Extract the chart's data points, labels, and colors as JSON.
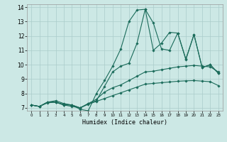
{
  "title": "",
  "xlabel": "Humidex (Indice chaleur)",
  "bg_color": "#cce8e5",
  "grid_color": "#aaccca",
  "line_color": "#1a6b5a",
  "xlim": [
    -0.5,
    23.5
  ],
  "ylim": [
    6.8,
    14.2
  ],
  "xticks": [
    0,
    1,
    2,
    3,
    4,
    5,
    6,
    7,
    8,
    9,
    10,
    11,
    12,
    13,
    14,
    15,
    16,
    17,
    18,
    19,
    20,
    21,
    22,
    23
  ],
  "yticks": [
    7,
    8,
    9,
    10,
    11,
    12,
    13,
    14
  ],
  "series": [
    {
      "x": [
        0,
        1,
        2,
        3,
        4,
        5,
        6,
        7,
        8,
        9,
        10,
        11,
        12,
        13,
        14,
        15,
        16,
        17,
        18,
        19,
        20,
        21,
        22,
        23
      ],
      "y": [
        7.2,
        7.1,
        7.4,
        7.4,
        7.2,
        7.2,
        6.9,
        6.8,
        8.0,
        8.9,
        9.9,
        11.1,
        13.0,
        13.8,
        13.85,
        12.9,
        11.1,
        11.0,
        12.2,
        10.4,
        12.1,
        9.8,
        10.0,
        9.4
      ]
    },
    {
      "x": [
        0,
        1,
        2,
        3,
        4,
        5,
        6,
        7,
        8,
        9,
        10,
        11,
        12,
        13,
        14,
        15,
        16,
        17,
        18,
        19,
        20,
        21,
        22,
        23
      ],
      "y": [
        7.2,
        7.1,
        7.4,
        7.4,
        7.2,
        7.1,
        7.0,
        7.3,
        7.5,
        8.5,
        9.5,
        9.9,
        10.1,
        11.5,
        13.85,
        11.0,
        11.5,
        12.25,
        12.2,
        10.35,
        12.1,
        9.8,
        10.0,
        9.4
      ]
    },
    {
      "x": [
        0,
        1,
        2,
        3,
        4,
        5,
        6,
        7,
        8,
        9,
        10,
        11,
        12,
        13,
        14,
        15,
        16,
        17,
        18,
        19,
        20,
        21,
        22,
        23
      ],
      "y": [
        7.2,
        7.1,
        7.4,
        7.5,
        7.3,
        7.2,
        7.0,
        7.3,
        7.6,
        8.1,
        8.4,
        8.6,
        8.9,
        9.2,
        9.5,
        9.55,
        9.65,
        9.75,
        9.85,
        9.9,
        9.95,
        9.9,
        9.85,
        9.5
      ]
    },
    {
      "x": [
        0,
        1,
        2,
        3,
        4,
        5,
        6,
        7,
        8,
        9,
        10,
        11,
        12,
        13,
        14,
        15,
        16,
        17,
        18,
        19,
        20,
        21,
        22,
        23
      ],
      "y": [
        7.2,
        7.1,
        7.35,
        7.4,
        7.25,
        7.2,
        7.0,
        7.25,
        7.45,
        7.65,
        7.85,
        8.05,
        8.25,
        8.45,
        8.65,
        8.7,
        8.75,
        8.8,
        8.85,
        8.88,
        8.9,
        8.86,
        8.82,
        8.55
      ]
    }
  ]
}
